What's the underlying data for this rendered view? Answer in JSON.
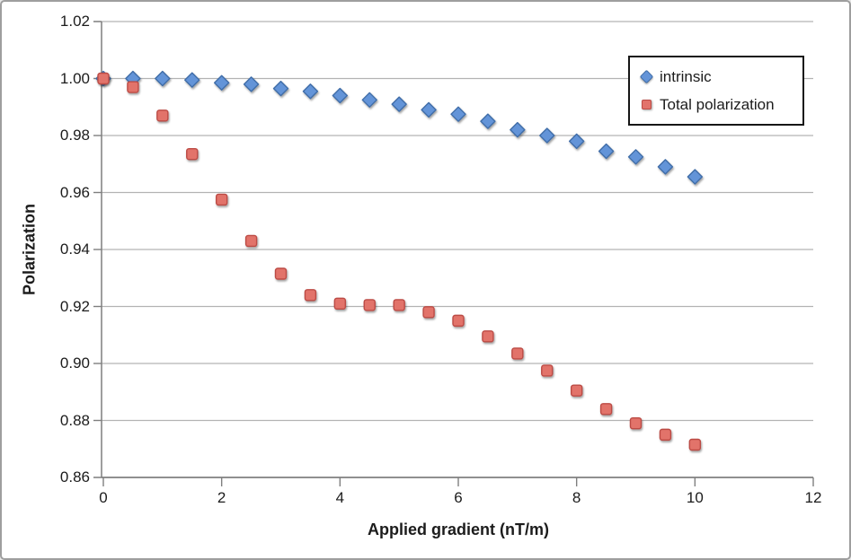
{
  "chart_data": {
    "type": "scatter",
    "title": "",
    "xlabel": "Applied gradient (nT/m)",
    "ylabel": "Polarization",
    "xlim": [
      0,
      12
    ],
    "ylim": [
      0.86,
      1.02
    ],
    "grid": "horizontal gridlines only",
    "legend_position": "top-right inside plot, black border box",
    "x_ticks": [
      {
        "v": 0,
        "label": "0"
      },
      {
        "v": 2,
        "label": "2"
      },
      {
        "v": 4,
        "label": "4"
      },
      {
        "v": 6,
        "label": "6"
      },
      {
        "v": 8,
        "label": "8"
      },
      {
        "v": 10,
        "label": "10"
      },
      {
        "v": 12,
        "label": "12"
      }
    ],
    "y_ticks": [
      {
        "v": 1.02,
        "label": "1.02"
      },
      {
        "v": 1.0,
        "label": "1.00"
      },
      {
        "v": 0.98,
        "label": "0.98"
      },
      {
        "v": 0.96,
        "label": "0.96"
      },
      {
        "v": 0.94,
        "label": "0.94"
      },
      {
        "v": 0.92,
        "label": "0.92"
      },
      {
        "v": 0.9,
        "label": "0.90"
      },
      {
        "v": 0.88,
        "label": "0.88"
      },
      {
        "v": 0.86,
        "label": "0.86"
      }
    ],
    "x": [
      0,
      0.5,
      1,
      1.5,
      2,
      2.5,
      3,
      3.5,
      4,
      4.5,
      5,
      5.5,
      6,
      6.5,
      7,
      7.5,
      8,
      8.5,
      9,
      9.5,
      10
    ],
    "series": [
      {
        "name": "intrinsic",
        "marker": "diamond",
        "fill": "#6494D8",
        "stroke": "#3F6DA8",
        "values": [
          1.0,
          1.0,
          1.0,
          0.9995,
          0.9985,
          0.998,
          0.9965,
          0.9955,
          0.994,
          0.9925,
          0.991,
          0.989,
          0.9875,
          0.985,
          0.982,
          0.98,
          0.978,
          0.9745,
          0.9725,
          0.969,
          0.9655
        ]
      },
      {
        "name": "Total polarization",
        "marker": "square",
        "fill": "#E2736B",
        "stroke": "#BC4B45",
        "values": [
          1.0,
          0.997,
          0.987,
          0.9735,
          0.9575,
          0.943,
          0.9315,
          0.924,
          0.921,
          0.9205,
          0.9205,
          0.918,
          0.915,
          0.9095,
          0.9035,
          0.8975,
          0.8905,
          0.884,
          0.879,
          0.875,
          0.8715
        ]
      }
    ],
    "colors": {
      "grid": "#b3b3b3",
      "axis": "#7f7f7f",
      "text": "#1c1c1c",
      "plot_background": "#ffffff",
      "frame_border": "#9e9e9e"
    }
  }
}
